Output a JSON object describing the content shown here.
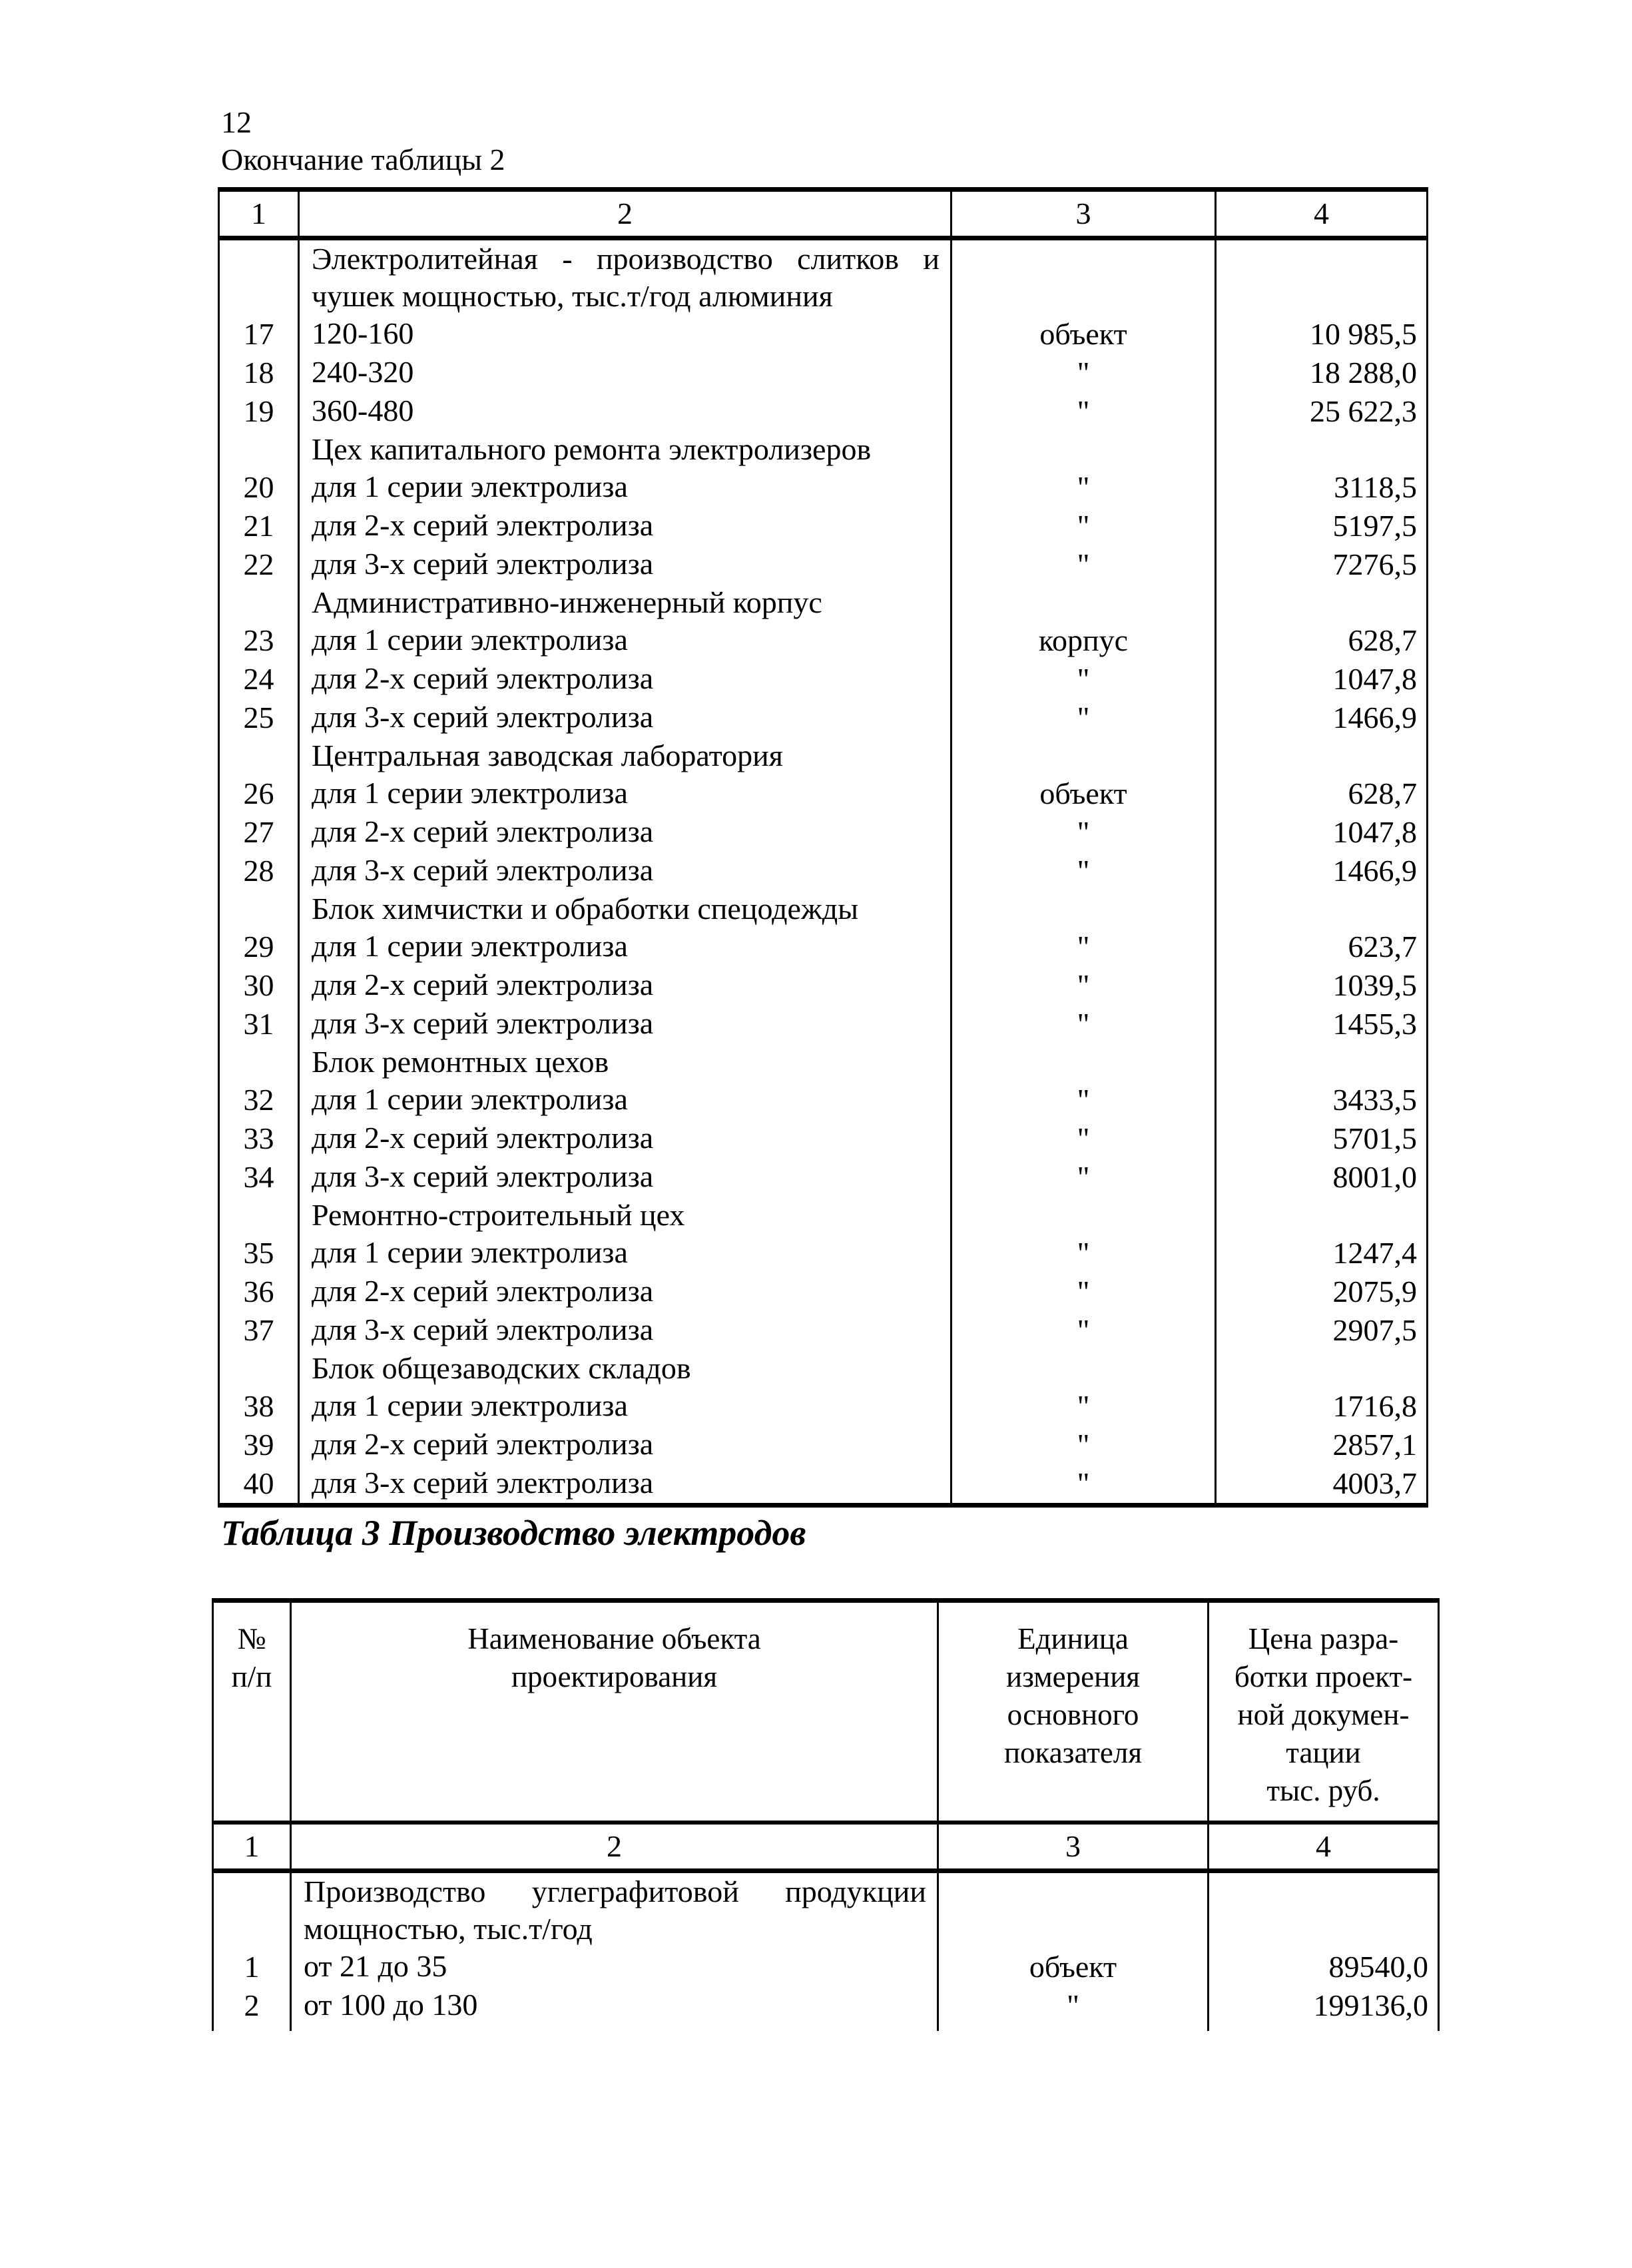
{
  "page": {
    "number": "12",
    "table2_caption": "Окончание таблицы 2",
    "table3_title": "Таблица 3 Производство электродов"
  },
  "table2": {
    "col_numbers": [
      "1",
      "2",
      "3",
      "4"
    ],
    "rows": [
      {
        "num": "",
        "name": "Электролитейная - производство слитков и\nчушек мощностью, тыс.т/год алюминия",
        "unit": "",
        "price": "",
        "group": true
      },
      {
        "num": "17",
        "name": "120-160",
        "unit": "объект",
        "price": "10 985,5"
      },
      {
        "num": "18",
        "name": "240-320",
        "unit": "\"",
        "price": "18 288,0"
      },
      {
        "num": "19",
        "name": "360-480",
        "unit": "\"",
        "price": "25 622,3"
      },
      {
        "num": "",
        "name": "Цех капитального ремонта электролизеров",
        "unit": "",
        "price": "",
        "group": true
      },
      {
        "num": "20",
        "name": "для 1 серии электролиза",
        "unit": "\"",
        "price": "3118,5"
      },
      {
        "num": "21",
        "name": "для 2-х серий электролиза",
        "unit": "\"",
        "price": "5197,5"
      },
      {
        "num": "22",
        "name": "для 3-х серий электролиза",
        "unit": "\"",
        "price": "7276,5"
      },
      {
        "num": "",
        "name": "Административно-инженерный корпус",
        "unit": "",
        "price": "",
        "group": true
      },
      {
        "num": "23",
        "name": "для 1 серии электролиза",
        "unit": "корпус",
        "price": "628,7"
      },
      {
        "num": "24",
        "name": "для 2-х серий электролиза",
        "unit": "\"",
        "price": "1047,8"
      },
      {
        "num": "25",
        "name": "для 3-х серий электролиза",
        "unit": "\"",
        "price": "1466,9"
      },
      {
        "num": "",
        "name": "Центральная заводская лаборатория",
        "unit": "",
        "price": "",
        "group": true
      },
      {
        "num": "26",
        "name": "для 1 серии электролиза",
        "unit": "объект",
        "price": "628,7"
      },
      {
        "num": "27",
        "name": "для 2-х серий электролиза",
        "unit": "\"",
        "price": "1047,8"
      },
      {
        "num": "28",
        "name": "для 3-х серий электролиза",
        "unit": "\"",
        "price": "1466,9"
      },
      {
        "num": "",
        "name": "Блок химчистки и обработки спецодежды",
        "unit": "",
        "price": "",
        "group": true
      },
      {
        "num": "29",
        "name": "для 1 серии электролиза",
        "unit": "\"",
        "price": "623,7"
      },
      {
        "num": "30",
        "name": "для 2-х серий электролиза",
        "unit": "\"",
        "price": "1039,5"
      },
      {
        "num": "31",
        "name": "для 3-х серий электролиза",
        "unit": "\"",
        "price": "1455,3"
      },
      {
        "num": "",
        "name": "Блок ремонтных цехов",
        "unit": "",
        "price": "",
        "group": true
      },
      {
        "num": "32",
        "name": "для 1 серии электролиза",
        "unit": "\"",
        "price": "3433,5"
      },
      {
        "num": "33",
        "name": "для 2-х серий электролиза",
        "unit": "\"",
        "price": "5701,5"
      },
      {
        "num": "34",
        "name": "для 3-х серий электролиза",
        "unit": "\"",
        "price": "8001,0"
      },
      {
        "num": "",
        "name": "Ремонтно-строительный цех",
        "unit": "",
        "price": "",
        "group": true
      },
      {
        "num": "35",
        "name": "для 1 серии электролиза",
        "unit": "\"",
        "price": "1247,4"
      },
      {
        "num": "36",
        "name": "для 2-х серий электролиза",
        "unit": "\"",
        "price": "2075,9"
      },
      {
        "num": "37",
        "name": "для 3-х серий электролиза",
        "unit": "\"",
        "price": "2907,5"
      },
      {
        "num": "",
        "name": "Блок общезаводских складов",
        "unit": "",
        "price": "",
        "group": true
      },
      {
        "num": "38",
        "name": "для 1 серии электролиза",
        "unit": "\"",
        "price": "1716,8"
      },
      {
        "num": "39",
        "name": "для 2-х серий электролиза",
        "unit": "\"",
        "price": "2857,1"
      },
      {
        "num": "40",
        "name": "для 3-х серий электролиза",
        "unit": "\"",
        "price": "4003,7"
      }
    ]
  },
  "table3": {
    "headers": {
      "num": "№\nп/п",
      "name": "Наименование объекта\nпроектирования",
      "unit": "Единица\nизмерения\nосновного\nпоказателя",
      "price": "Цена разра-\nботки проект-\nной докумен-\nтации\nтыс. руб."
    },
    "col_numbers": [
      "1",
      "2",
      "3",
      "4"
    ],
    "rows": [
      {
        "num": "",
        "name": "Производство углеграфитовой продукции\nмощностью, тыс.т/год",
        "unit": "",
        "price": "",
        "group": true
      },
      {
        "num": "1",
        "name": "от 21 до 35",
        "unit": "объект",
        "price": "89540,0"
      },
      {
        "num": "2",
        "name": "от 100 до 130",
        "unit": "\"",
        "price": "199136,0"
      }
    ]
  }
}
